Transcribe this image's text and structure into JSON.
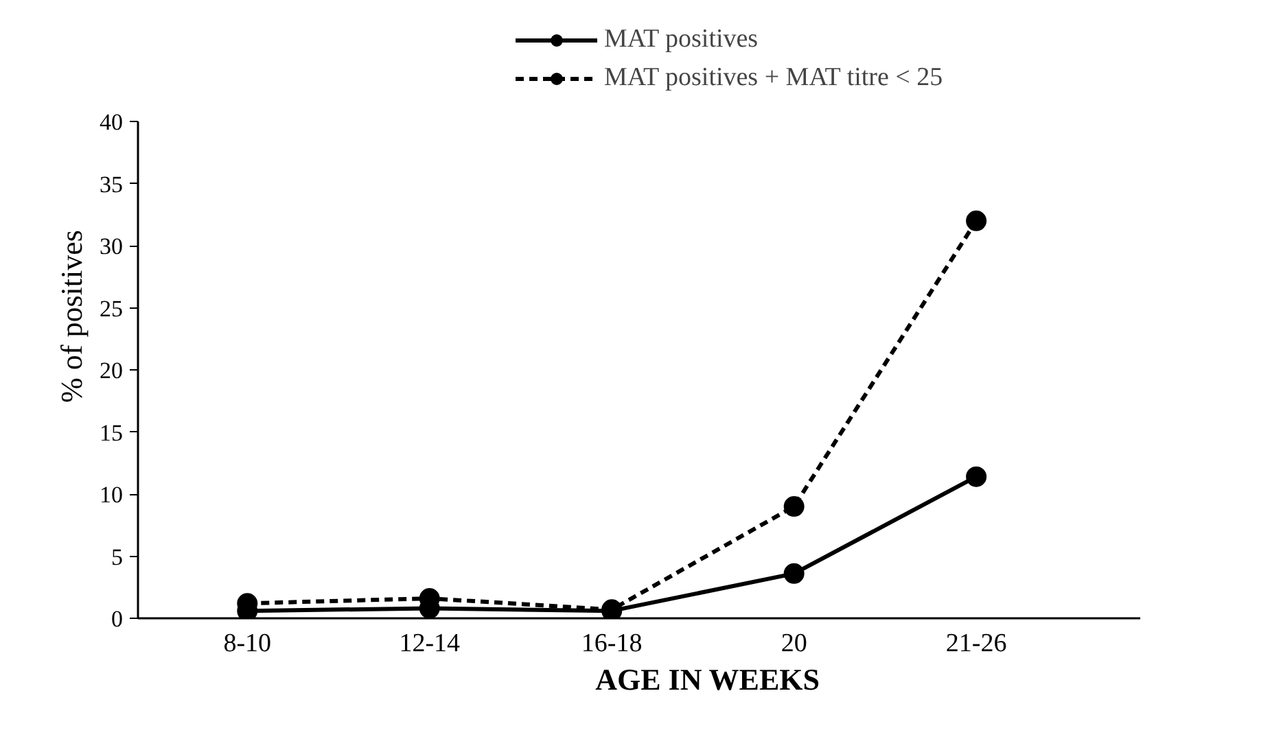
{
  "chart_data": {
    "type": "line",
    "xlabel": "AGE IN WEEKS",
    "ylabel": "% of positives",
    "categories": [
      "8-10",
      "12-14",
      "16-18",
      "20",
      "21-26"
    ],
    "series": [
      {
        "name": "MAT positives",
        "color": "#000000",
        "line_style": "solid",
        "values": [
          0.6,
          0.8,
          0.6,
          3.6,
          11.4
        ]
      },
      {
        "name": "MAT positives + MAT titre < 25",
        "color": "#000000",
        "line_style": "dashed",
        "values": [
          1.2,
          1.6,
          0.7,
          9.0,
          32.0
        ]
      }
    ],
    "ylim": [
      0,
      40
    ],
    "yticks": [
      0,
      5,
      10,
      15,
      20,
      25,
      30,
      35,
      40
    ],
    "marker": "circle",
    "grid": false,
    "legend": "top right"
  }
}
